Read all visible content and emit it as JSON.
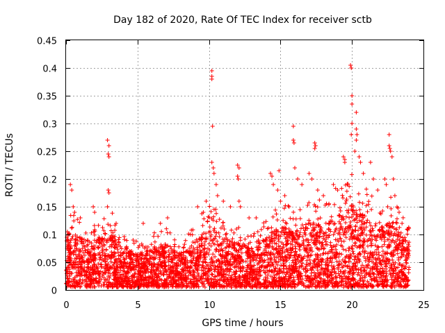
{
  "chart_data": {
    "type": "scatter",
    "title": "Day 182 of 2020, Rate Of TEC Index for receiver sctb",
    "xlabel": "GPS time / hours",
    "ylabel": "ROTI / TECUs",
    "xlim": [
      0,
      25
    ],
    "ylim": [
      0,
      0.45
    ],
    "xticks": [
      0,
      5,
      10,
      15,
      20,
      25
    ],
    "xtick_labels": [
      "0",
      "5",
      "10",
      "15",
      "20",
      "25"
    ],
    "yticks": [
      0,
      0.05,
      0.1,
      0.15,
      0.2,
      0.25,
      0.3,
      0.35,
      0.4,
      0.45
    ],
    "ytick_labels": [
      "0",
      "0.05",
      "0.1",
      "0.15",
      "0.2",
      "0.25",
      "0.3",
      "0.35",
      "0.4",
      "0.45"
    ],
    "grid": true,
    "marker": "plus",
    "marker_color": "#ff0000",
    "data_extent_hours": [
      0,
      24
    ],
    "envelope": {
      "description": "approximate typical upper extent of the dense ROTI point cloud (hour, ROTI)",
      "points": [
        [
          0,
          0.1
        ],
        [
          1,
          0.09
        ],
        [
          2,
          0.08
        ],
        [
          3,
          0.11
        ],
        [
          4,
          0.07
        ],
        [
          5,
          0.06
        ],
        [
          6,
          0.07
        ],
        [
          7,
          0.08
        ],
        [
          8,
          0.06
        ],
        [
          9,
          0.08
        ],
        [
          10,
          0.11
        ],
        [
          11,
          0.09
        ],
        [
          12,
          0.08
        ],
        [
          13,
          0.07
        ],
        [
          14,
          0.09
        ],
        [
          15,
          0.11
        ],
        [
          16,
          0.1
        ],
        [
          17,
          0.12
        ],
        [
          18,
          0.11
        ],
        [
          19,
          0.13
        ],
        [
          20,
          0.15
        ],
        [
          21,
          0.13
        ],
        [
          22,
          0.11
        ],
        [
          23,
          0.12
        ],
        [
          24,
          0.08
        ]
      ]
    },
    "outliers": [
      [
        0.3,
        0.19
      ],
      [
        0.4,
        0.18
      ],
      [
        0.5,
        0.15
      ],
      [
        0.6,
        0.14
      ],
      [
        1.0,
        0.13
      ],
      [
        1.9,
        0.15
      ],
      [
        2.0,
        0.14
      ],
      [
        2.9,
        0.27
      ],
      [
        3.0,
        0.26
      ],
      [
        2.95,
        0.245
      ],
      [
        3.0,
        0.24
      ],
      [
        2.95,
        0.18
      ],
      [
        3.0,
        0.175
      ],
      [
        2.9,
        0.15
      ],
      [
        3.5,
        0.12
      ],
      [
        5.4,
        0.12
      ],
      [
        6.6,
        0.12
      ],
      [
        7.1,
        0.13
      ],
      [
        9.2,
        0.15
      ],
      [
        9.6,
        0.14
      ],
      [
        9.8,
        0.16
      ],
      [
        10.2,
        0.395
      ],
      [
        10.2,
        0.385
      ],
      [
        10.2,
        0.38
      ],
      [
        10.25,
        0.295
      ],
      [
        10.2,
        0.23
      ],
      [
        10.3,
        0.22
      ],
      [
        10.35,
        0.21
      ],
      [
        10.5,
        0.19
      ],
      [
        10.6,
        0.17
      ],
      [
        11.0,
        0.16
      ],
      [
        11.5,
        0.15
      ],
      [
        12.0,
        0.225
      ],
      [
        12.1,
        0.22
      ],
      [
        12.0,
        0.205
      ],
      [
        12.05,
        0.2
      ],
      [
        12.1,
        0.16
      ],
      [
        12.2,
        0.15
      ],
      [
        12.8,
        0.13
      ],
      [
        13.3,
        0.13
      ],
      [
        14.3,
        0.21
      ],
      [
        14.4,
        0.205
      ],
      [
        14.5,
        0.19
      ],
      [
        14.8,
        0.18
      ],
      [
        14.9,
        0.215
      ],
      [
        15.0,
        0.16
      ],
      [
        15.3,
        0.17
      ],
      [
        15.6,
        0.15
      ],
      [
        15.9,
        0.295
      ],
      [
        15.9,
        0.27
      ],
      [
        15.95,
        0.265
      ],
      [
        16.0,
        0.22
      ],
      [
        16.2,
        0.2
      ],
      [
        16.5,
        0.19
      ],
      [
        17.0,
        0.21
      ],
      [
        17.2,
        0.2
      ],
      [
        17.4,
        0.265
      ],
      [
        17.45,
        0.26
      ],
      [
        17.4,
        0.255
      ],
      [
        17.6,
        0.18
      ],
      [
        18.0,
        0.17
      ],
      [
        18.7,
        0.19
      ],
      [
        19.0,
        0.18
      ],
      [
        19.4,
        0.24
      ],
      [
        19.5,
        0.235
      ],
      [
        19.5,
        0.23
      ],
      [
        19.9,
        0.405
      ],
      [
        19.95,
        0.4
      ],
      [
        20.0,
        0.35
      ],
      [
        20.0,
        0.335
      ],
      [
        20.0,
        0.3
      ],
      [
        19.95,
        0.28
      ],
      [
        20.3,
        0.32
      ],
      [
        20.3,
        0.29
      ],
      [
        20.35,
        0.28
      ],
      [
        20.3,
        0.27
      ],
      [
        20.2,
        0.25
      ],
      [
        20.5,
        0.24
      ],
      [
        20.6,
        0.23
      ],
      [
        20.8,
        0.21
      ],
      [
        21.3,
        0.23
      ],
      [
        21.5,
        0.2
      ],
      [
        21.8,
        0.18
      ],
      [
        22.3,
        0.2
      ],
      [
        22.4,
        0.19
      ],
      [
        22.5,
        0.15
      ],
      [
        22.6,
        0.28
      ],
      [
        22.6,
        0.26
      ],
      [
        22.65,
        0.255
      ],
      [
        22.7,
        0.25
      ],
      [
        22.8,
        0.24
      ],
      [
        22.9,
        0.2
      ],
      [
        23.0,
        0.17
      ],
      [
        23.3,
        0.14
      ],
      [
        23.5,
        0.12
      ],
      [
        23.9,
        0.11
      ]
    ]
  }
}
